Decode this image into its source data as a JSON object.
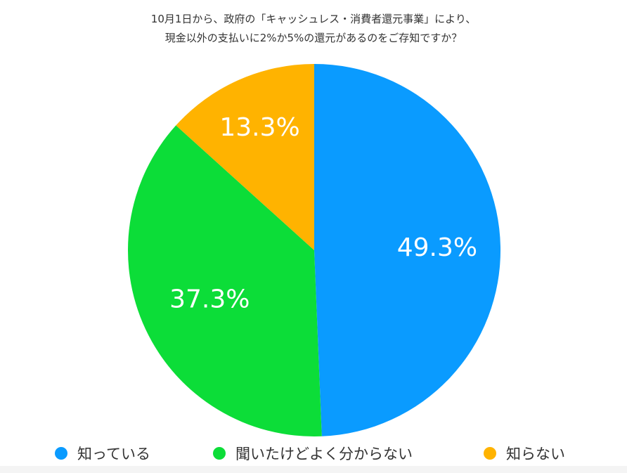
{
  "chart_data": {
    "type": "pie",
    "title_lines": [
      "10月1日から、政府の「キャッシュレス・消費者還元事業」により、",
      "現金以外の支払いに2%か5%の還元があるのをご存知ですか？"
    ],
    "categories": [
      "知っている",
      "聞いたけどよく分からない",
      "知らない"
    ],
    "values": [
      49.3,
      37.3,
      13.3
    ],
    "data_labels": [
      "49.3%",
      "37.3%",
      "13.3%"
    ],
    "colors": [
      "#0a9bff",
      "#0cdd38",
      "#ffb300"
    ],
    "start_angle": "12 o'clock",
    "direction": "clockwise",
    "legend_position": "bottom"
  }
}
